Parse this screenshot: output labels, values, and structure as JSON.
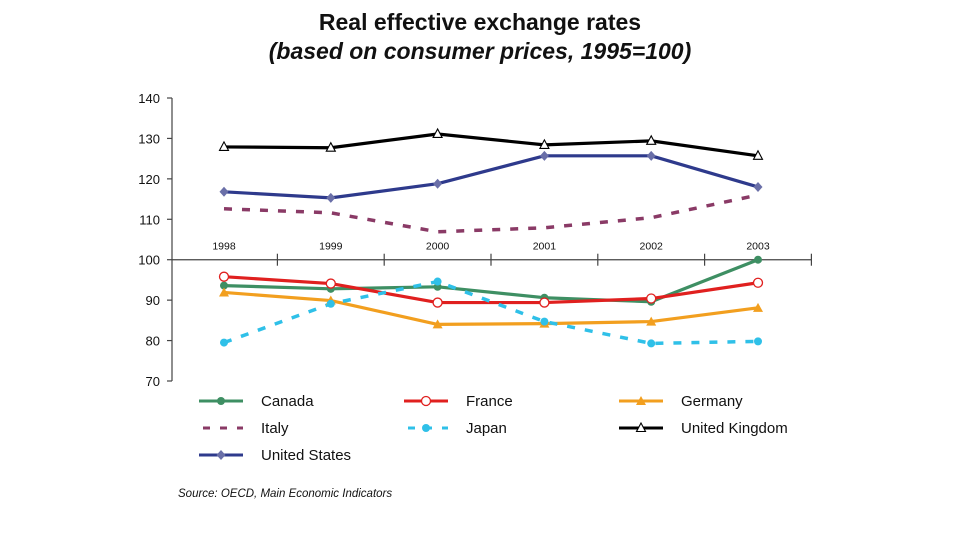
{
  "chart_data": {
    "type": "line",
    "title": "Real effective exchange rates",
    "subtitle": "(based on consumer prices, 1995=100)",
    "xlabel": "",
    "ylabel": "",
    "x": [
      "1998",
      "1999",
      "2000",
      "2001",
      "2002",
      "2003"
    ],
    "ylim": [
      70,
      140
    ],
    "yticks": [
      70,
      80,
      90,
      100,
      110,
      120,
      130,
      140
    ],
    "ytick_labels": [
      "70",
      "80",
      "90",
      "100",
      "110",
      "120",
      "130",
      "140"
    ],
    "x_axis_crosses_at": 100,
    "grid": false,
    "legend_position": "bottom",
    "series": [
      {
        "name": "Canada",
        "color": "#3e8f63",
        "dash": "solid",
        "marker": "filled-circle",
        "values": [
          93.6,
          92.8,
          93.3,
          90.6,
          89.6,
          100.0
        ]
      },
      {
        "name": "France",
        "color": "#e0201f",
        "dash": "solid",
        "marker": "open-circle",
        "values": [
          95.8,
          94.1,
          89.4,
          89.4,
          90.4,
          94.3
        ]
      },
      {
        "name": "Germany",
        "color": "#f29f1f",
        "dash": "solid",
        "marker": "filled-triangle",
        "values": [
          91.9,
          89.9,
          84.0,
          84.2,
          84.7,
          88.1
        ]
      },
      {
        "name": "Italy",
        "color": "#8a3a66",
        "dash": "dashed",
        "marker": "none",
        "values": [
          112.6,
          111.6,
          106.9,
          107.9,
          110.4,
          116.0
        ]
      },
      {
        "name": "Japan",
        "color": "#2fc0e8",
        "dash": "dashed",
        "marker": "filled-circle",
        "values": [
          79.5,
          89.1,
          94.6,
          84.7,
          79.3,
          79.8
        ]
      },
      {
        "name": "United Kingdom",
        "color": "#000000",
        "dash": "solid",
        "marker": "open-triangle",
        "values": [
          127.9,
          127.7,
          131.1,
          128.4,
          129.4,
          125.7
        ]
      },
      {
        "name": "United States",
        "color": "#2e3a8c",
        "dash": "solid",
        "marker": "diamond",
        "values": [
          116.8,
          115.3,
          118.8,
          125.7,
          125.7,
          118.0
        ]
      }
    ],
    "source": "Source: OECD, Main Economic Indicators"
  }
}
